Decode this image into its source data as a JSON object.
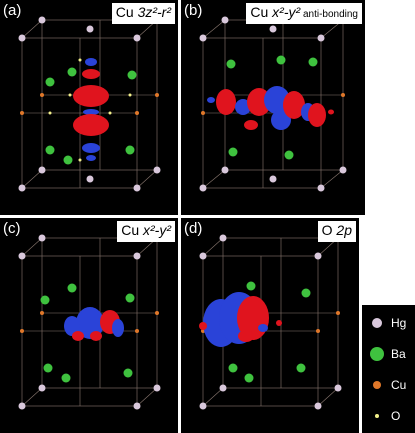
{
  "panels": [
    {
      "letter": "(a)",
      "title_main": "Cu ",
      "title_orbital": "3z²-r²",
      "title_suffix": ""
    },
    {
      "letter": "(b)",
      "title_main": "Cu ",
      "title_orbital": "x²-y²",
      "title_suffix": " anti-bonding"
    },
    {
      "letter": "(c)",
      "title_main": "Cu ",
      "title_orbital": "x²-y²",
      "title_suffix": ""
    },
    {
      "letter": "(d)",
      "title_main": "O ",
      "title_orbital": "2p",
      "title_suffix": ""
    }
  ],
  "legend": [
    {
      "label": "Hg",
      "color": "#d9c8dc"
    },
    {
      "label": "Ba",
      "color": "#3fc23f"
    },
    {
      "label": "Cu",
      "color": "#e0782a"
    },
    {
      "label": "O",
      "color": "#f2f08a"
    }
  ],
  "colors": {
    "positive_lobe": "#e0141e",
    "negative_lobe": "#2a43d8",
    "lattice_line": "#c8a090",
    "background": "#000000"
  }
}
